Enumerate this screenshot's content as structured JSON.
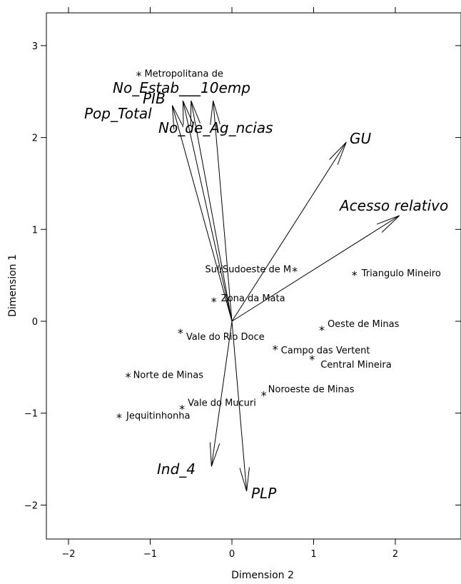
{
  "chart_data": {
    "type": "scatter",
    "xlabel": "Dimension 2",
    "ylabel": "Dimension 1",
    "xlim": [
      -2.3,
      2.8
    ],
    "ylim": [
      -2.35,
      3.35
    ],
    "x_ticks": [
      -2,
      -1,
      0,
      1,
      2
    ],
    "y_ticks": [
      -2,
      -1,
      0,
      1,
      2,
      3
    ],
    "x_tick_labels": [
      "−2",
      "−1",
      "0",
      "1",
      "2"
    ],
    "y_tick_labels": [
      "−2",
      "−1",
      "0",
      "1",
      "2",
      "3"
    ],
    "grid": false,
    "points": [
      {
        "label": "Metropolitana de",
        "x": -1.14,
        "y": 2.7
      },
      {
        "label": "Sul/Sudoeste de M",
        "x": 0.77,
        "y": 0.57
      },
      {
        "label": "Triangulo Mineiro",
        "x": 1.5,
        "y": 0.53
      },
      {
        "label": "Zona da Mata",
        "x": -0.22,
        "y": 0.24
      },
      {
        "label": "Oeste de Minas",
        "x": 1.1,
        "y": -0.07
      },
      {
        "label": "Vale do Rio Doce",
        "x": -0.63,
        "y": -0.1
      },
      {
        "label": "Campo das Vertent",
        "x": 0.53,
        "y": -0.28
      },
      {
        "label": "Central Mineira",
        "x": 0.98,
        "y": -0.39
      },
      {
        "label": "Norte de Minas",
        "x": -1.27,
        "y": -0.58
      },
      {
        "label": "Noroeste de Minas",
        "x": 0.39,
        "y": -0.78
      },
      {
        "label": "Vale do Mucuri",
        "x": -0.61,
        "y": -0.93
      },
      {
        "label": "Jequitinhonha",
        "x": -1.38,
        "y": -1.02
      }
    ],
    "vectors": [
      {
        "label": "No_Estab___10emp",
        "x": -0.23,
        "y": 2.4
      },
      {
        "label": "PIB",
        "x": -0.6,
        "y": 2.4
      },
      {
        "label": "Pop_Total",
        "x": -0.73,
        "y": 2.35
      },
      {
        "label": "No_de_Ag_ncias",
        "x": -0.5,
        "y": 2.4
      },
      {
        "label": "GU",
        "x": 1.4,
        "y": 1.95
      },
      {
        "label": "Acesso relativo",
        "x": 2.05,
        "y": 1.15
      },
      {
        "label": "Ind_4",
        "x": -0.25,
        "y": -1.58
      },
      {
        "label": "PLP",
        "x": 0.18,
        "y": -1.85
      }
    ]
  }
}
